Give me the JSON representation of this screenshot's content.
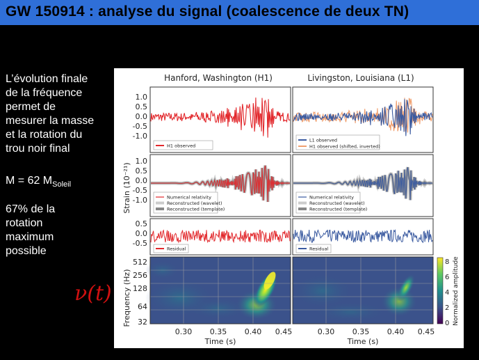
{
  "slide": {
    "title": "GW 150914 : analyse du signal (coalescence de deux TN)",
    "paragraph1": [
      "L’évolution finale",
      "de la fréquence",
      "permet de",
      "mesurer la masse",
      "et la rotation du",
      "trou noir final"
    ],
    "mass_prefix": "M = 62 M",
    "mass_sub": "Soleil",
    "paragraph2": [
      "67% de la",
      "rotation",
      "maximum",
      "possible"
    ],
    "nu_label": "ν(t)",
    "colors": {
      "title_bg": "#2f6fd8",
      "background": "#000000",
      "nu": "#d01010"
    }
  },
  "figure": {
    "col_titles": [
      "Hanford, Washington (H1)",
      "Livingston, Louisiana (L1)"
    ],
    "ylabel_strain": "Strain (10⁻²¹)",
    "ylabel_freq": "Frequency (Hz)",
    "colorbar_label": "Normalized amplitude",
    "colorbar_ticks": [
      "0",
      "2",
      "4",
      "6",
      "8"
    ],
    "xlabel": "Time (s)",
    "xticks": [
      "0.30",
      "0.35",
      "0.40",
      "0.45"
    ],
    "yticks_row1": [
      "1.0",
      "0.5",
      "0.0",
      "-0.5",
      "-1.0"
    ],
    "yticks_row2": [
      "1.0",
      "0.5",
      "0.0",
      "-0.5",
      "-1.0"
    ],
    "yticks_row3": [
      "0.5",
      "0.0",
      "-0.5"
    ],
    "yticks_freq": [
      "512",
      "256",
      "128",
      "64",
      "32"
    ],
    "legend_r1_left": [
      "H1 observed"
    ],
    "legend_r1_right": [
      "L1 observed",
      "H1 observed (shifted, inverted)"
    ],
    "legend_r2": [
      "Numerical relativity",
      "Reconstructed (wavelet)",
      "Reconstructed (template)"
    ],
    "legend_r3": [
      "Residual"
    ],
    "colors": {
      "h1": "#e2282c",
      "l1": "#3a5aa0",
      "h1_shifted": "#f0a070",
      "template": "#888888",
      "wavelet": "#cccccc"
    }
  }
}
